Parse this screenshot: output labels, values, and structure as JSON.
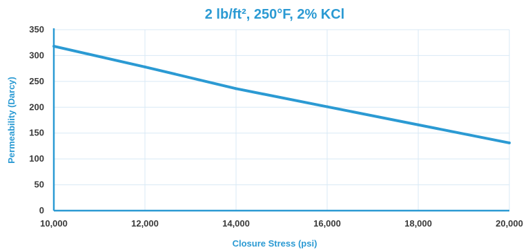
{
  "colors": {
    "accent": "#2b9ad3",
    "grid": "#d8e9f5",
    "tick_text": "#3a3a3a"
  },
  "chart_data": {
    "type": "line",
    "title": "2 lb/ft², 250°F, 2% KCl",
    "xlabel": "Closure Stress (psi)",
    "ylabel": "Permeability (Darcy)",
    "xlim": [
      10000,
      20000
    ],
    "ylim": [
      0,
      350
    ],
    "x_ticks": [
      10000,
      12000,
      14000,
      16000,
      18000,
      20000
    ],
    "x_tick_labels": [
      "10,000",
      "12,000",
      "14,000",
      "16,000",
      "18,000",
      "20,000"
    ],
    "y_ticks": [
      0,
      50,
      100,
      150,
      200,
      250,
      300,
      350
    ],
    "y_tick_labels": [
      "0",
      "50",
      "100",
      "150",
      "200",
      "250",
      "300",
      "350"
    ],
    "grid": true,
    "legend": false,
    "series": [
      {
        "x": [
          10000,
          12000,
          14000,
          16000,
          18000,
          20000
        ],
        "values": [
          318,
          278,
          236,
          201,
          166,
          131
        ]
      }
    ]
  }
}
